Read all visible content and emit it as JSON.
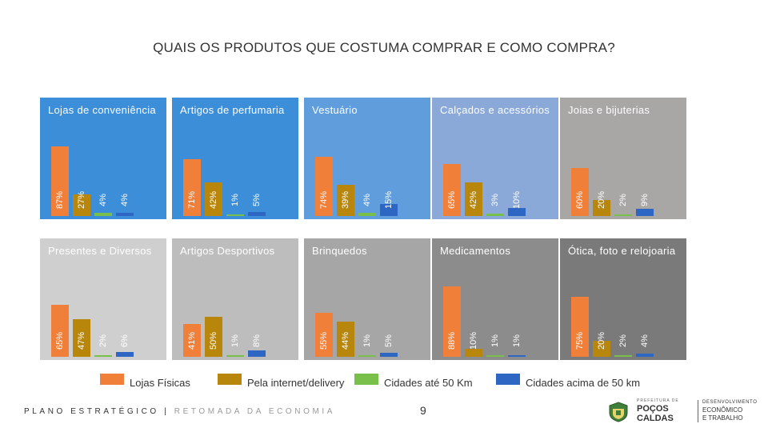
{
  "title": "QUAIS OS PRODUTOS QUE COSTUMA COMPRAR E COMO COMPRA?",
  "colors": {
    "lojas_fisicas": "#f07f3a",
    "internet": "#b8860b",
    "ate_50": "#78c04a",
    "acima_50": "#2d66c3"
  },
  "legend": [
    {
      "label": "Lojas Físicas",
      "color": "#f07f3a"
    },
    {
      "label": "Pela internet/delivery",
      "color": "#b8860b"
    },
    {
      "label": "Cidades até 50 Km",
      "color": "#78c04a"
    },
    {
      "label": "Cidades acima de 50 km",
      "color": "#2d66c3"
    }
  ],
  "chart_data": {
    "type": "bar",
    "series_names": [
      "Lojas Físicas",
      "Pela internet/delivery",
      "Cidades até 50 Km",
      "Cidades acima de 50 km"
    ],
    "ylim": [
      0,
      100
    ],
    "panels": [
      {
        "title": "Lojas de conveniência",
        "values": [
          87,
          27,
          4,
          4
        ],
        "labels": [
          "87%",
          "27%",
          "4%",
          "4%"
        ],
        "background": "#3d8ed8"
      },
      {
        "title": "Artigos de perfumaria",
        "values": [
          71,
          42,
          1,
          5
        ],
        "labels": [
          "71%",
          "42%",
          "1%",
          "5%"
        ],
        "background": "#3d8ed8"
      },
      {
        "title": "Vestuário",
        "values": [
          74,
          39,
          4,
          15
        ],
        "labels": [
          "74%",
          "39%",
          "4%",
          "15%"
        ],
        "background": "#5f9ddd"
      },
      {
        "title": "Calçados e acessórios",
        "values": [
          65,
          42,
          3,
          10
        ],
        "labels": [
          "65%",
          "42%",
          "3%",
          "10%"
        ],
        "background": "#8aa9d9"
      },
      {
        "title": "Joias e bijuterias",
        "values": [
          60,
          20,
          2,
          9
        ],
        "labels": [
          "60%",
          "20%",
          "2%",
          "9%"
        ],
        "background": "#a9a6a6"
      },
      {
        "title": "Presentes e Diversos",
        "values": [
          65,
          47,
          2,
          6
        ],
        "labels": [
          "65%",
          "47%",
          "2%",
          "6%"
        ],
        "background": "#cfcfcf"
      },
      {
        "title": "Artigos Desportivos",
        "values": [
          41,
          50,
          1,
          8
        ],
        "labels": [
          "41%",
          "50%",
          "1%",
          "8%"
        ],
        "background": "#bdbdbd"
      },
      {
        "title": "Brinquedos",
        "values": [
          55,
          44,
          1,
          5
        ],
        "labels": [
          "55%",
          "44%",
          "1%",
          "5%"
        ],
        "background": "#a6a6a6"
      },
      {
        "title": "Medicamentos",
        "values": [
          88,
          10,
          1,
          1
        ],
        "labels": [
          "88%",
          "10%",
          "1%",
          "1%"
        ],
        "background": "#8c8c8c"
      },
      {
        "title": "Ótica, foto e relojoaria",
        "values": [
          75,
          20,
          2,
          4
        ],
        "labels": [
          "75%",
          "20%",
          "2%",
          "4%"
        ],
        "background": "#7a7a7a"
      }
    ]
  },
  "footer": {
    "left": "PLANO ESTRATÉGICO | ",
    "right": "RETOMADA DA ECONOMIA",
    "page": "9"
  },
  "logo": {
    "line1": "PREFEITURA DE",
    "line2a": "POÇOS",
    "line2b": "CALDAS",
    "right1": "DESENVOLVIMENTO",
    "right2": "ECONÔMICO",
    "right3": "E TRABALHO"
  }
}
